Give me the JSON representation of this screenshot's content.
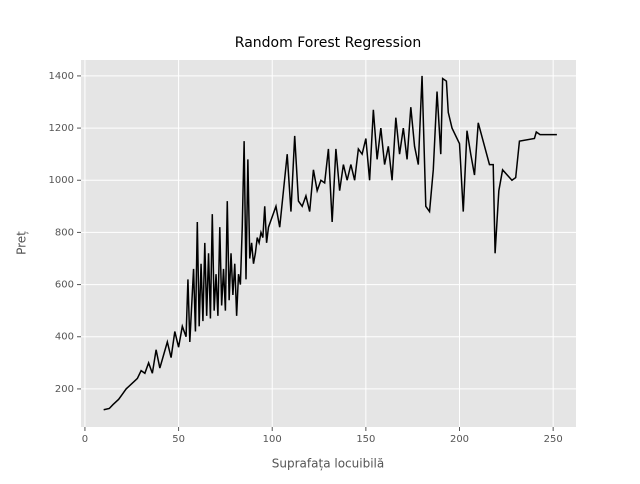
{
  "chart_data": {
    "type": "line",
    "title": "Random Forest Regression",
    "x_label": "Suprafața locuibilă",
    "y_label": "Preț",
    "xlim": [
      -2.1,
      262.2
    ],
    "ylim": [
      54,
      1461
    ],
    "xticks": [
      0,
      50,
      100,
      150,
      200,
      250
    ],
    "yticks": [
      200,
      400,
      600,
      800,
      1000,
      1200,
      1400
    ],
    "grid": true,
    "series": [
      {
        "color": "#000000",
        "x": [
          10,
          13,
          15,
          18,
          20,
          22,
          25,
          28,
          30,
          32,
          34,
          36,
          38,
          40,
          42,
          44,
          46,
          48,
          50,
          52,
          54,
          55,
          56,
          58,
          59,
          60,
          61,
          62,
          63,
          64,
          65,
          66,
          67,
          68,
          69,
          70,
          71,
          72,
          73,
          74,
          75,
          76,
          77,
          78,
          79,
          80,
          81,
          82,
          83,
          84,
          85,
          86,
          87,
          88,
          89,
          90,
          91,
          92,
          93,
          94,
          95,
          96,
          97,
          98,
          100,
          102,
          104,
          106,
          108,
          110,
          112,
          114,
          116,
          118,
          120,
          122,
          124,
          126,
          128,
          130,
          132,
          134,
          136,
          138,
          140,
          142,
          144,
          146,
          148,
          150,
          152,
          154,
          156,
          158,
          160,
          162,
          164,
          166,
          168,
          170,
          172,
          174,
          176,
          178,
          180,
          182,
          184,
          186,
          188,
          190,
          191,
          193,
          194,
          196,
          200,
          202,
          204,
          206,
          208,
          210,
          216,
          218,
          219,
          221,
          223,
          228,
          230,
          232,
          240,
          241,
          243,
          252
        ],
        "values": [
          120,
          125,
          140,
          160,
          180,
          200,
          220,
          240,
          270,
          260,
          300,
          260,
          350,
          280,
          330,
          380,
          320,
          420,
          360,
          440,
          400,
          620,
          380,
          660,
          420,
          840,
          440,
          680,
          460,
          760,
          480,
          720,
          470,
          870,
          500,
          640,
          480,
          820,
          520,
          660,
          500,
          920,
          540,
          720,
          560,
          680,
          480,
          640,
          600,
          820,
          1150,
          620,
          1080,
          700,
          760,
          680,
          720,
          780,
          760,
          800,
          780,
          900,
          760,
          820,
          860,
          900,
          820,
          960,
          1100,
          880,
          1170,
          920,
          900,
          940,
          880,
          1040,
          960,
          1000,
          990,
          1120,
          840,
          1120,
          960,
          1060,
          1000,
          1060,
          1000,
          1120,
          1100,
          1160,
          1000,
          1270,
          1080,
          1200,
          1060,
          1130,
          1000,
          1240,
          1100,
          1200,
          1080,
          1280,
          1130,
          1060,
          1400,
          900,
          880,
          1040,
          1340,
          1100,
          1390,
          1380,
          1260,
          1200,
          1140,
          880,
          1190,
          1100,
          1020,
          1220,
          1060,
          1060,
          720,
          960,
          1040,
          1000,
          1010,
          1150,
          1160,
          1185,
          1175,
          1175
        ]
      }
    ]
  }
}
